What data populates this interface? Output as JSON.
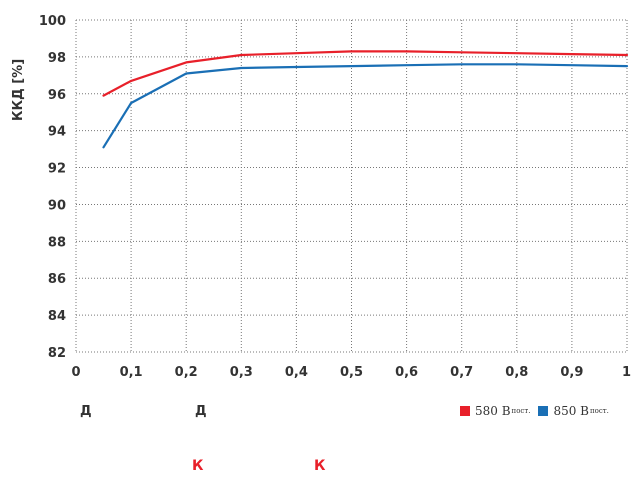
{
  "chart_data": {
    "type": "line",
    "ylabel": "ККД [%]",
    "xlabel": "",
    "xlim": [
      0,
      1
    ],
    "ylim": [
      82,
      100
    ],
    "x_ticks": [
      "0",
      "0,1",
      "0,2",
      "0,3",
      "0,4",
      "0,5",
      "0,6",
      "0,7",
      "0,8",
      "0,9",
      "1"
    ],
    "y_ticks": [
      "82",
      "84",
      "86",
      "88",
      "90",
      "92",
      "94",
      "96",
      "98",
      "100"
    ],
    "grid": true,
    "legend_position": "bottom-right",
    "series": [
      {
        "name": "580 В",
        "name_sub": "пост.",
        "color": "#e8202a",
        "x": [
          0.05,
          0.1,
          0.2,
          0.3,
          0.4,
          0.5,
          0.55,
          0.6,
          0.7,
          0.8,
          0.9,
          1.0
        ],
        "y": [
          95.9,
          96.7,
          97.7,
          98.1,
          98.2,
          98.3,
          98.3,
          98.3,
          98.25,
          98.2,
          98.15,
          98.1
        ]
      },
      {
        "name": "850 В",
        "name_sub": "пост.",
        "color": "#1a6fb5",
        "x": [
          0.05,
          0.1,
          0.2,
          0.3,
          0.4,
          0.5,
          0.6,
          0.7,
          0.8,
          0.9,
          1.0
        ],
        "y": [
          93.1,
          95.5,
          97.1,
          97.4,
          97.45,
          97.5,
          97.55,
          97.6,
          97.6,
          97.55,
          97.5
        ]
      }
    ]
  },
  "annotations": {
    "below_axis_1": "Д",
    "below_axis_2": "Д",
    "red_1": "К",
    "red_2": "К"
  }
}
